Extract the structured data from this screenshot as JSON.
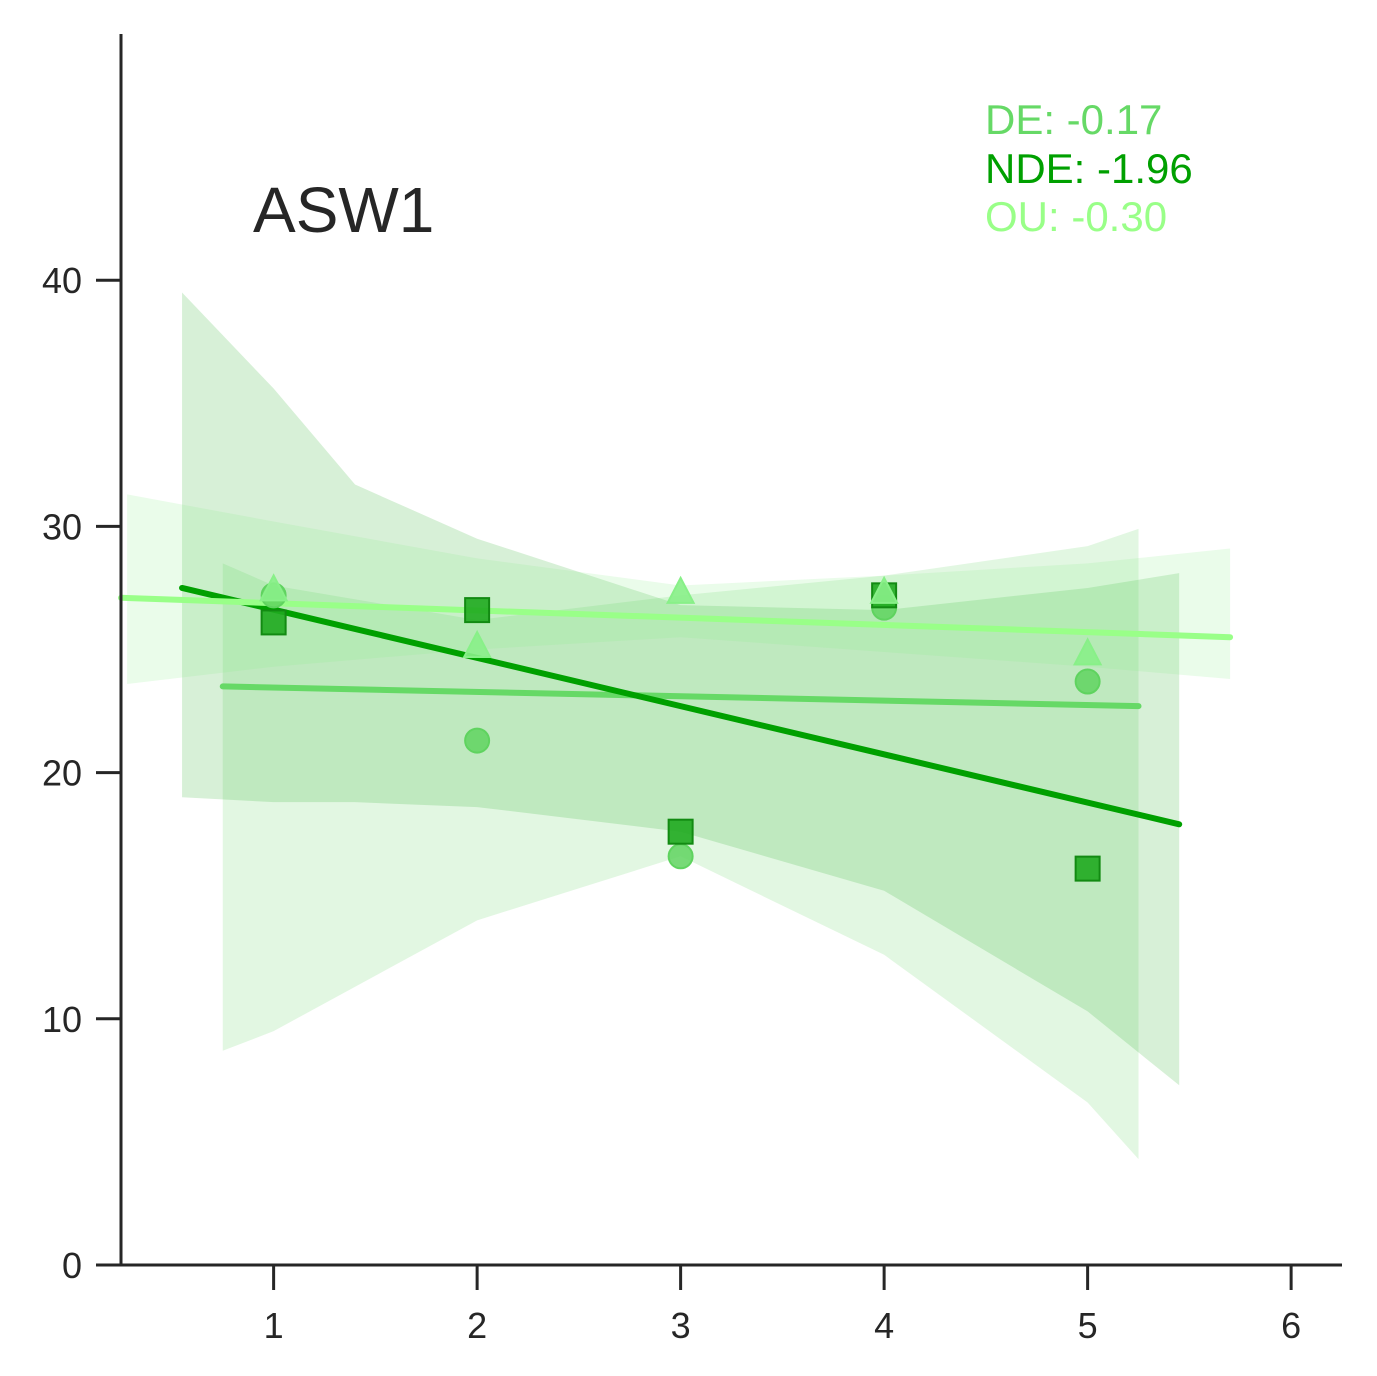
{
  "chart_data": {
    "type": "scatter",
    "title": "ASW1",
    "xlabel": "",
    "ylabel": "",
    "xlim": [
      0.25,
      6.25
    ],
    "ylim": [
      0,
      50
    ],
    "xticks": [
      1,
      2,
      3,
      4,
      5,
      6
    ],
    "yticks": [
      0,
      10,
      20,
      30,
      40
    ],
    "grid": false,
    "legend": "none",
    "annotations": [
      {
        "text": "DE: -0.17",
        "color": "#66d966"
      },
      {
        "text": "NDE: -1.96",
        "color": "#00a000"
      },
      {
        "text": "OU: -0.30",
        "color": "#99ff88"
      }
    ],
    "series": [
      {
        "marker": "circle",
        "color": "#5fd35f",
        "points": [
          [
            1,
            27.2
          ],
          [
            2,
            21.3
          ],
          [
            3,
            16.6
          ],
          [
            4,
            26.7
          ],
          [
            5,
            23.7
          ]
        ],
        "fit": {
          "x": [
            0.75,
            5.25
          ],
          "y": [
            23.5,
            22.7
          ]
        },
        "band": {
          "x": [
            0.75,
            1.0,
            2.0,
            3.0,
            4.0,
            5.0,
            5.25
          ],
          "upper": [
            28.5,
            27.6,
            26.2,
            27.2,
            28.0,
            29.2,
            29.9
          ],
          "lower": [
            8.7,
            9.5,
            14.0,
            16.6,
            12.6,
            6.6,
            4.3
          ]
        }
      },
      {
        "marker": "square",
        "color": "#1faa1f",
        "points": [
          [
            1,
            26.1
          ],
          [
            2,
            26.6
          ],
          [
            3,
            17.6
          ],
          [
            4,
            27.2
          ],
          [
            5,
            16.1
          ]
        ],
        "fit": {
          "x": [
            0.55,
            5.45
          ],
          "y": [
            27.5,
            17.9
          ]
        },
        "band": {
          "x": [
            0.55,
            1.0,
            1.4,
            2.0,
            3.0,
            4.0,
            5.0,
            5.45
          ],
          "upper": [
            39.5,
            35.6,
            31.7,
            29.5,
            26.8,
            26.6,
            27.5,
            28.1
          ],
          "lower": [
            19.0,
            18.8,
            18.8,
            18.6,
            17.6,
            15.2,
            10.3,
            7.3
          ]
        }
      },
      {
        "marker": "triangle",
        "color": "#88f088",
        "points": [
          [
            1,
            27.4
          ],
          [
            2,
            25.1
          ],
          [
            3,
            27.3
          ],
          [
            4,
            27.3
          ],
          [
            5,
            24.8
          ]
        ],
        "fit": {
          "x": [
            0.25,
            5.7
          ],
          "y": [
            27.1,
            25.5
          ]
        },
        "band": {
          "x": [
            0.28,
            1.0,
            2.0,
            3.0,
            4.0,
            5.0,
            5.7
          ],
          "upper": [
            31.3,
            30.2,
            28.7,
            27.6,
            28.0,
            28.5,
            29.1
          ],
          "lower": [
            23.6,
            24.3,
            25.0,
            25.5,
            24.9,
            24.3,
            23.8
          ]
        }
      }
    ]
  }
}
